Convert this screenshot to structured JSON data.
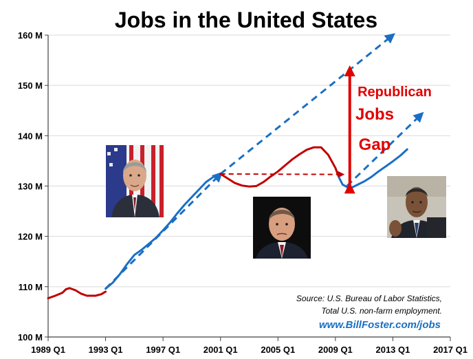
{
  "chart_data": {
    "type": "line",
    "title": "Jobs in the United States",
    "xlabel": "",
    "ylabel": "",
    "x_range": [
      1989.0,
      2017.0
    ],
    "ylim": [
      100,
      160
    ],
    "y_ticks": [
      {
        "value": 100,
        "label": "100 M"
      },
      {
        "value": 110,
        "label": "110 M"
      },
      {
        "value": 120,
        "label": "120 M"
      },
      {
        "value": 130,
        "label": "130 M"
      },
      {
        "value": 140,
        "label": "140 M"
      },
      {
        "value": 150,
        "label": "150 M"
      },
      {
        "value": 160,
        "label": "160 M"
      }
    ],
    "x_ticks": [
      {
        "value": 1989,
        "label": "1989 Q1"
      },
      {
        "value": 1993,
        "label": "1993 Q1"
      },
      {
        "value": 1997,
        "label": "1997 Q1"
      },
      {
        "value": 2001,
        "label": "2001 Q1"
      },
      {
        "value": 2005,
        "label": "2005 Q1"
      },
      {
        "value": 2009,
        "label": "2009 Q1"
      },
      {
        "value": 2013,
        "label": "2013 Q1"
      },
      {
        "value": 2017,
        "label": "2017 Q1"
      }
    ],
    "grid": "horizontal",
    "series": [
      {
        "color": "#c00000",
        "style": "solid",
        "points": [
          [
            1989.0,
            107.7
          ],
          [
            1989.5,
            108.2
          ],
          [
            1990.0,
            108.8
          ],
          [
            1990.25,
            109.5
          ],
          [
            1990.5,
            109.7
          ],
          [
            1990.9,
            109.3
          ],
          [
            1991.3,
            108.6
          ],
          [
            1991.7,
            108.2
          ],
          [
            1992.3,
            108.2
          ],
          [
            1992.7,
            108.5
          ],
          [
            1993.0,
            109.0
          ]
        ]
      },
      {
        "color": "#1a6fc4",
        "style": "solid",
        "points": [
          [
            1993.0,
            109.6
          ],
          [
            1993.5,
            110.8
          ],
          [
            1994.0,
            112.5
          ],
          [
            1994.5,
            114.5
          ],
          [
            1995.0,
            116.3
          ],
          [
            1995.5,
            117.3
          ],
          [
            1996.0,
            118.5
          ],
          [
            1996.5,
            119.7
          ],
          [
            1997.0,
            121.2
          ],
          [
            1997.5,
            122.8
          ],
          [
            1998.0,
            124.6
          ],
          [
            1998.5,
            126.3
          ],
          [
            1999.0,
            127.8
          ],
          [
            1999.5,
            129.3
          ],
          [
            2000.0,
            130.8
          ],
          [
            2000.5,
            131.8
          ],
          [
            2001.0,
            132.4
          ]
        ]
      },
      {
        "color": "#c00000",
        "style": "solid",
        "points": [
          [
            2001.0,
            132.4
          ],
          [
            2001.5,
            131.5
          ],
          [
            2002.0,
            130.6
          ],
          [
            2002.5,
            130.1
          ],
          [
            2003.0,
            129.9
          ],
          [
            2003.5,
            130.0
          ],
          [
            2004.0,
            130.8
          ],
          [
            2004.5,
            131.9
          ],
          [
            2005.0,
            132.9
          ],
          [
            2005.5,
            134.1
          ],
          [
            2006.0,
            135.3
          ],
          [
            2006.5,
            136.3
          ],
          [
            2007.0,
            137.2
          ],
          [
            2007.5,
            137.7
          ],
          [
            2008.0,
            137.7
          ],
          [
            2008.5,
            136.2
          ],
          [
            2009.0,
            133.6
          ],
          [
            2009.25,
            131.7
          ]
        ]
      },
      {
        "color": "#1a6fc4",
        "style": "solid",
        "points": [
          [
            2009.25,
            131.7
          ],
          [
            2009.5,
            130.3
          ],
          [
            2010.0,
            129.5
          ],
          [
            2010.5,
            130.2
          ],
          [
            2011.0,
            130.9
          ],
          [
            2011.5,
            131.8
          ],
          [
            2012.0,
            132.9
          ],
          [
            2012.5,
            133.9
          ],
          [
            2013.0,
            134.9
          ],
          [
            2013.5,
            136.0
          ],
          [
            2014.0,
            137.3
          ]
        ]
      }
    ],
    "trend_arrows": [
      {
        "color": "#1a6fc4",
        "from": [
          1993.0,
          109.6
        ],
        "to": [
          2001.0,
          132.4
        ]
      },
      {
        "color": "#1a6fc4",
        "from": [
          2001.0,
          132.4
        ],
        "to": [
          2013.0,
          160.0
        ]
      },
      {
        "color": "#c00000",
        "from": [
          2001.0,
          132.4
        ],
        "to": [
          2009.5,
          132.3
        ]
      },
      {
        "color": "#1a6fc4",
        "from": [
          2009.8,
          130.0
        ],
        "to": [
          2015.0,
          144.3
        ]
      }
    ],
    "gap_arrow": {
      "color": "#e00000",
      "x": 2010.0,
      "y_from": 129.6,
      "y_to": 152.9
    },
    "annotations": {
      "gap_label_lines": [
        "Republican",
        "Jobs",
        "Gap"
      ],
      "source_lines": [
        "Source:  U.S. Bureau of Labor Statistics,",
        "Total U.S. non-farm  employment."
      ],
      "url": "www.BillFoster.com/jobs"
    },
    "colors": {
      "axis": "#404040",
      "grid": "#d9d9d9",
      "blue": "#1a6fc4",
      "red": "#c00000",
      "gap_red": "#e00000"
    }
  },
  "portraits": [
    {
      "name": "portrait-clinton-photo"
    },
    {
      "name": "portrait-bush-photo"
    },
    {
      "name": "portrait-obama-photo"
    }
  ]
}
